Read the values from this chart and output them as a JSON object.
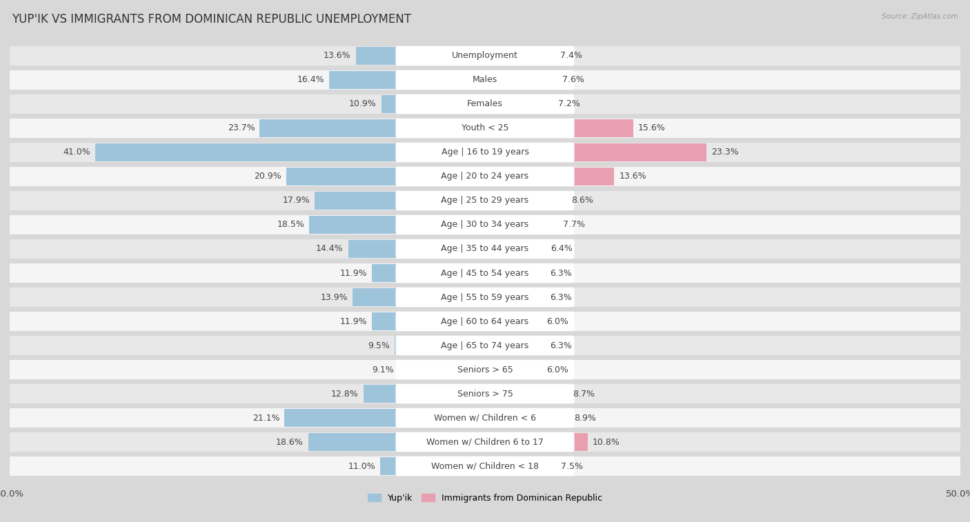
{
  "title": "YUP'IK VS IMMIGRANTS FROM DOMINICAN REPUBLIC UNEMPLOYMENT",
  "source": "Source: ZipAtlas.com",
  "categories": [
    "Unemployment",
    "Males",
    "Females",
    "Youth < 25",
    "Age | 16 to 19 years",
    "Age | 20 to 24 years",
    "Age | 25 to 29 years",
    "Age | 30 to 34 years",
    "Age | 35 to 44 years",
    "Age | 45 to 54 years",
    "Age | 55 to 59 years",
    "Age | 60 to 64 years",
    "Age | 65 to 74 years",
    "Seniors > 65",
    "Seniors > 75",
    "Women w/ Children < 6",
    "Women w/ Children 6 to 17",
    "Women w/ Children < 18"
  ],
  "yupik_values": [
    13.6,
    16.4,
    10.9,
    23.7,
    41.0,
    20.9,
    17.9,
    18.5,
    14.4,
    11.9,
    13.9,
    11.9,
    9.5,
    9.1,
    12.8,
    21.1,
    18.6,
    11.0
  ],
  "dominican_values": [
    7.4,
    7.6,
    7.2,
    15.6,
    23.3,
    13.6,
    8.6,
    7.7,
    6.4,
    6.3,
    6.3,
    6.0,
    6.3,
    6.0,
    8.7,
    8.9,
    10.8,
    7.5
  ],
  "yupik_color": "#9ec4dc",
  "dominican_color": "#e8a0b0",
  "row_color_even": "#e8e8e8",
  "row_color_odd": "#f5f5f5",
  "label_pill_color": "#ffffff",
  "background_color": "#d8d8d8",
  "max_value": 50.0,
  "legend_label_yupik": "Yup'ik",
  "legend_label_dominican": "Immigrants from Dominican Republic",
  "title_fontsize": 12,
  "label_fontsize": 9,
  "category_fontsize": 9
}
